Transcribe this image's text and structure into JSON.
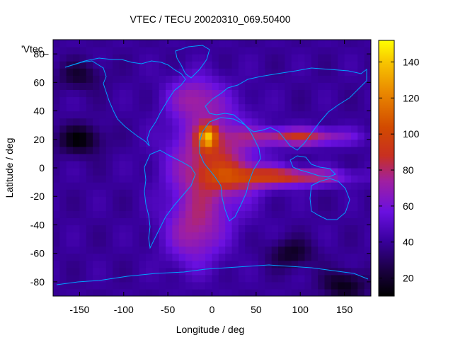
{
  "chart_data": {
    "type": "heatmap",
    "title": "VTEC / TECU 20020310_069.50400",
    "xlabel": "Longitude / deg",
    "ylabel": "Latitude / deg",
    "legend_key": "'Vtec_",
    "xlim": [
      -180,
      180
    ],
    "ylim": [
      -90,
      90
    ],
    "x_ticks": [
      -150,
      -100,
      -50,
      0,
      50,
      100,
      150
    ],
    "y_ticks": [
      -80,
      -60,
      -40,
      -20,
      0,
      20,
      40,
      60,
      80
    ],
    "colorbar": {
      "range": [
        10,
        152
      ],
      "ticks": [
        20,
        40,
        60,
        80,
        100,
        120,
        140
      ]
    },
    "grid": false,
    "coastline_color": "#00a0ff",
    "field_estimate": {
      "background_tecu": 40,
      "peak_tecu": 150,
      "peak_location_lon_lat": [
        -5,
        22
      ],
      "bulge_center_lon_lat": [
        0,
        5
      ],
      "north_arm_lon_lat": [
        -20,
        50
      ],
      "south_arm_lon_lat": [
        -20,
        -45
      ],
      "east_bands": [
        {
          "lat": 22,
          "lon_start": 40,
          "lon_end": 155,
          "value": 95
        },
        {
          "lat": -6,
          "lon_start": 40,
          "lon_end": 155,
          "value": 90
        }
      ],
      "low_regions": [
        {
          "lon": -150,
          "lat": 20,
          "value": 12
        },
        {
          "lon": -150,
          "lat": 65,
          "value": 22
        },
        {
          "lon": 90,
          "lat": -60,
          "value": 18
        },
        {
          "lon": 150,
          "lat": -82,
          "value": 15
        }
      ]
    }
  }
}
